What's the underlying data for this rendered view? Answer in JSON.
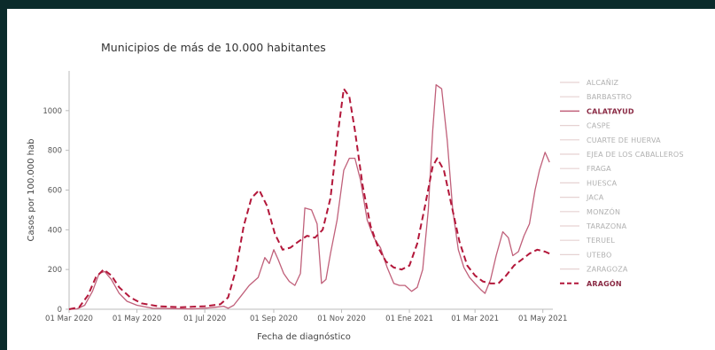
{
  "chart_data": {
    "type": "line",
    "title": "Municipios de más de 10.000 habitantes",
    "xlabel": "Fecha de diagnóstico",
    "ylabel": "Casos por 100.000 hab",
    "x_tick_labels": [
      "01 Mar 2020",
      "01 May 2020",
      "01 Jul 2020",
      "01 Sep 2020",
      "01 Nov 2020",
      "01 Ene 2021",
      "01 Mar 2021",
      "01 May 2021"
    ],
    "x_tick_dates": [
      "2020-03-01",
      "2020-05-01",
      "2020-07-01",
      "2020-09-01",
      "2020-11-01",
      "2021-01-01",
      "2021-03-01",
      "2021-05-01"
    ],
    "y_ticks": [
      0,
      200,
      400,
      600,
      800,
      1000
    ],
    "xlim": [
      "2020-03-01",
      "2021-05-10"
    ],
    "ylim": [
      0,
      1200
    ],
    "legend": {
      "placement": "right",
      "items": [
        {
          "name": "ALCAÑIZ",
          "style": "faded"
        },
        {
          "name": "BARBASTRO",
          "style": "faded"
        },
        {
          "name": "CALATAYUD",
          "style": "highlight"
        },
        {
          "name": "CASPE",
          "style": "faded"
        },
        {
          "name": "CUARTE DE HUERVA",
          "style": "faded"
        },
        {
          "name": "EJEA DE LOS CABALLEROS",
          "style": "faded"
        },
        {
          "name": "FRAGA",
          "style": "faded"
        },
        {
          "name": "HUESCA",
          "style": "faded"
        },
        {
          "name": "JACA",
          "style": "faded"
        },
        {
          "name": "MONZÓN",
          "style": "faded"
        },
        {
          "name": "TARAZONA",
          "style": "faded"
        },
        {
          "name": "TERUEL",
          "style": "faded"
        },
        {
          "name": "UTEBO",
          "style": "faded"
        },
        {
          "name": "ZARAGOZA",
          "style": "faded"
        },
        {
          "name": "ARAGÓN",
          "style": "dashed"
        }
      ]
    },
    "colors": {
      "calatayud": "#c0607a",
      "aragon": "#b3173a",
      "faded": "#e6d2d2",
      "axis": "#444444"
    },
    "series": [
      {
        "name": "CALATAYUD",
        "points": [
          [
            "2020-03-01",
            0
          ],
          [
            "2020-03-08",
            2
          ],
          [
            "2020-03-15",
            20
          ],
          [
            "2020-03-22",
            90
          ],
          [
            "2020-03-28",
            180
          ],
          [
            "2020-04-02",
            190
          ],
          [
            "2020-04-08",
            150
          ],
          [
            "2020-04-15",
            80
          ],
          [
            "2020-04-22",
            40
          ],
          [
            "2020-05-01",
            20
          ],
          [
            "2020-05-15",
            5
          ],
          [
            "2020-06-01",
            3
          ],
          [
            "2020-06-20",
            2
          ],
          [
            "2020-07-01",
            5
          ],
          [
            "2020-07-10",
            10
          ],
          [
            "2020-07-18",
            15
          ],
          [
            "2020-07-22",
            5
          ],
          [
            "2020-07-27",
            20
          ],
          [
            "2020-08-03",
            70
          ],
          [
            "2020-08-10",
            120
          ],
          [
            "2020-08-18",
            160
          ],
          [
            "2020-08-24",
            260
          ],
          [
            "2020-08-28",
            230
          ],
          [
            "2020-09-01",
            300
          ],
          [
            "2020-09-05",
            250
          ],
          [
            "2020-09-10",
            180
          ],
          [
            "2020-09-15",
            140
          ],
          [
            "2020-09-20",
            120
          ],
          [
            "2020-09-25",
            180
          ],
          [
            "2020-09-29",
            510
          ],
          [
            "2020-10-05",
            500
          ],
          [
            "2020-10-10",
            430
          ],
          [
            "2020-10-14",
            130
          ],
          [
            "2020-10-18",
            150
          ],
          [
            "2020-10-22",
            280
          ],
          [
            "2020-10-28",
            450
          ],
          [
            "2020-11-03",
            700
          ],
          [
            "2020-11-08",
            760
          ],
          [
            "2020-11-13",
            760
          ],
          [
            "2020-11-18",
            650
          ],
          [
            "2020-11-24",
            450
          ],
          [
            "2020-11-30",
            360
          ],
          [
            "2020-12-06",
            310
          ],
          [
            "2020-12-12",
            210
          ],
          [
            "2020-12-18",
            130
          ],
          [
            "2020-12-23",
            120
          ],
          [
            "2020-12-28",
            120
          ],
          [
            "2021-01-03",
            90
          ],
          [
            "2021-01-08",
            110
          ],
          [
            "2021-01-13",
            200
          ],
          [
            "2021-01-18",
            500
          ],
          [
            "2021-01-22",
            900
          ],
          [
            "2021-01-25",
            1130
          ],
          [
            "2021-01-30",
            1110
          ],
          [
            "2021-02-04",
            850
          ],
          [
            "2021-02-09",
            500
          ],
          [
            "2021-02-14",
            300
          ],
          [
            "2021-02-19",
            210
          ],
          [
            "2021-02-24",
            160
          ],
          [
            "2021-03-01",
            130
          ],
          [
            "2021-03-06",
            100
          ],
          [
            "2021-03-10",
            80
          ],
          [
            "2021-03-15",
            150
          ],
          [
            "2021-03-20",
            270
          ],
          [
            "2021-03-26",
            390
          ],
          [
            "2021-03-31",
            360
          ],
          [
            "2021-04-04",
            270
          ],
          [
            "2021-04-09",
            290
          ],
          [
            "2021-04-14",
            370
          ],
          [
            "2021-04-19",
            430
          ],
          [
            "2021-04-24",
            600
          ],
          [
            "2021-04-28",
            700
          ],
          [
            "2021-05-03",
            790
          ],
          [
            "2021-05-07",
            740
          ]
        ]
      },
      {
        "name": "ARAGÓN",
        "points": [
          [
            "2020-03-01",
            0
          ],
          [
            "2020-03-10",
            10
          ],
          [
            "2020-03-18",
            70
          ],
          [
            "2020-03-25",
            160
          ],
          [
            "2020-04-01",
            200
          ],
          [
            "2020-04-08",
            170
          ],
          [
            "2020-04-15",
            110
          ],
          [
            "2020-04-25",
            60
          ],
          [
            "2020-05-05",
            30
          ],
          [
            "2020-05-20",
            15
          ],
          [
            "2020-06-10",
            10
          ],
          [
            "2020-07-01",
            15
          ],
          [
            "2020-07-15",
            25
          ],
          [
            "2020-07-22",
            60
          ],
          [
            "2020-07-29",
            200
          ],
          [
            "2020-08-05",
            420
          ],
          [
            "2020-08-12",
            560
          ],
          [
            "2020-08-19",
            600
          ],
          [
            "2020-08-26",
            520
          ],
          [
            "2020-09-02",
            380
          ],
          [
            "2020-09-09",
            300
          ],
          [
            "2020-09-16",
            310
          ],
          [
            "2020-09-23",
            340
          ],
          [
            "2020-10-01",
            370
          ],
          [
            "2020-10-08",
            360
          ],
          [
            "2020-10-15",
            400
          ],
          [
            "2020-10-22",
            560
          ],
          [
            "2020-10-29",
            900
          ],
          [
            "2020-11-03",
            1110
          ],
          [
            "2020-11-08",
            1070
          ],
          [
            "2020-11-13",
            900
          ],
          [
            "2020-11-20",
            620
          ],
          [
            "2020-11-27",
            420
          ],
          [
            "2020-12-04",
            310
          ],
          [
            "2020-12-11",
            240
          ],
          [
            "2020-12-18",
            210
          ],
          [
            "2020-12-25",
            200
          ],
          [
            "2021-01-01",
            220
          ],
          [
            "2021-01-08",
            330
          ],
          [
            "2021-01-15",
            520
          ],
          [
            "2021-01-22",
            720
          ],
          [
            "2021-01-26",
            760
          ],
          [
            "2021-02-01",
            700
          ],
          [
            "2021-02-08",
            520
          ],
          [
            "2021-02-15",
            340
          ],
          [
            "2021-02-22",
            220
          ],
          [
            "2021-03-01",
            170
          ],
          [
            "2021-03-08",
            140
          ],
          [
            "2021-03-15",
            130
          ],
          [
            "2021-03-22",
            130
          ],
          [
            "2021-03-29",
            170
          ],
          [
            "2021-04-05",
            220
          ],
          [
            "2021-04-12",
            250
          ],
          [
            "2021-04-19",
            280
          ],
          [
            "2021-04-26",
            300
          ],
          [
            "2021-05-03",
            290
          ],
          [
            "2021-05-07",
            280
          ]
        ]
      }
    ]
  }
}
